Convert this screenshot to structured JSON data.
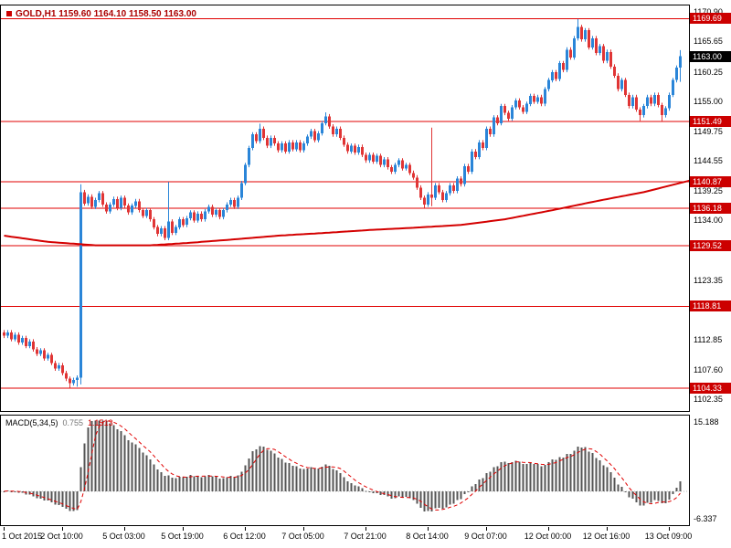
{
  "title": {
    "symbol_period": "GOLD,H1",
    "ohlc_text": "1159.60 1164.10 1158.50 1163.00"
  },
  "colors": {
    "up": "#2a85d8",
    "down": "#e03535",
    "ma": "#d40000",
    "hline": "#e00000",
    "tag_red": "#cc0000",
    "tag_black": "#000000",
    "macd_bar": "#555555",
    "macd_signal": "#e00000"
  },
  "price_axis": {
    "max": 1172.0,
    "min": 1100.3,
    "ticks": [
      {
        "label": "1170.90",
        "value": 1170.9
      },
      {
        "label": "1165.65",
        "value": 1165.65
      },
      {
        "label": "1160.25",
        "value": 1160.25
      },
      {
        "label": "1155.00",
        "value": 1155.0
      },
      {
        "label": "1149.75",
        "value": 1149.75
      },
      {
        "label": "1144.55",
        "value": 1144.55
      },
      {
        "label": "1139.25",
        "value": 1139.25
      },
      {
        "label": "1134.00",
        "value": 1134.0
      },
      {
        "label": "1123.35",
        "value": 1123.35
      },
      {
        "label": "1112.85",
        "value": 1112.85
      },
      {
        "label": "1107.60",
        "value": 1107.6
      },
      {
        "label": "1102.35",
        "value": 1102.35
      }
    ]
  },
  "current_price": {
    "label": "1163.00",
    "value": 1163.0
  },
  "time_axis": {
    "labels": [
      {
        "text": "1 Oct 2015",
        "bar": 0
      },
      {
        "text": "2 Oct 10:00",
        "bar": 16
      },
      {
        "text": "5 Oct 03:00",
        "bar": 33
      },
      {
        "text": "5 Oct 19:00",
        "bar": 49
      },
      {
        "text": "6 Oct 12:00",
        "bar": 66
      },
      {
        "text": "7 Oct 05:00",
        "bar": 82
      },
      {
        "text": "7 Oct 21:00",
        "bar": 99
      },
      {
        "text": "8 Oct 14:00",
        "bar": 116
      },
      {
        "text": "9 Oct 07:00",
        "bar": 132
      },
      {
        "text": "12 Oct 00:00",
        "bar": 149
      },
      {
        "text": "12 Oct 16:00",
        "bar": 165
      },
      {
        "text": "13 Oct 09:00",
        "bar": 182
      }
    ]
  },
  "chart_data": {
    "type": "candlestick",
    "symbol": "GOLD",
    "timeframe": "H1",
    "last_bar_ohlc": {
      "open": 1159.6,
      "high": 1164.1,
      "low": 1158.5,
      "close": 1163.0
    },
    "hlines": [
      {
        "label": "1169.69",
        "value": 1169.69
      },
      {
        "label": "1151.49",
        "value": 1151.49
      },
      {
        "label": "1140.87",
        "value": 1140.87
      },
      {
        "label": "1136.18",
        "value": 1136.18
      },
      {
        "label": "1129.52",
        "value": 1129.52
      },
      {
        "label": "1118.81",
        "value": 1118.81
      },
      {
        "label": "1104.33",
        "value": 1104.33
      }
    ],
    "closes": [
      1113.6,
      1114.2,
      1113.0,
      1113.8,
      1112.4,
      1113.2,
      1111.8,
      1112.6,
      1111.2,
      1110.4,
      1111.0,
      1109.6,
      1110.2,
      1108.8,
      1107.8,
      1108.4,
      1107.0,
      1106.0,
      1105.2,
      1105.8,
      1106.2,
      1139.0,
      1137.0,
      1138.2,
      1136.4,
      1137.6,
      1138.8,
      1136.8,
      1135.6,
      1136.8,
      1137.8,
      1136.2,
      1138.0,
      1136.6,
      1135.4,
      1136.6,
      1137.4,
      1135.8,
      1134.8,
      1135.8,
      1134.2,
      1132.8,
      1131.6,
      1132.6,
      1130.9,
      1133.8,
      1131.8,
      1132.8,
      1134.2,
      1133.2,
      1134.4,
      1135.4,
      1134.0,
      1135.2,
      1134.2,
      1135.6,
      1136.4,
      1135.0,
      1135.8,
      1134.6,
      1135.8,
      1136.8,
      1137.6,
      1136.4,
      1138.0,
      1140.6,
      1143.8,
      1146.8,
      1149.2,
      1148.0,
      1150.2,
      1148.6,
      1147.2,
      1148.6,
      1147.6,
      1146.4,
      1147.6,
      1146.2,
      1147.8,
      1146.6,
      1147.8,
      1146.4,
      1147.6,
      1148.8,
      1149.8,
      1148.2,
      1149.4,
      1151.2,
      1152.4,
      1150.6,
      1149.2,
      1150.2,
      1148.6,
      1147.4,
      1146.2,
      1147.2,
      1146.0,
      1147.0,
      1145.6,
      1144.6,
      1145.6,
      1144.4,
      1145.4,
      1143.8,
      1144.8,
      1143.4,
      1142.6,
      1143.8,
      1144.6,
      1143.2,
      1143.8,
      1142.4,
      1141.6,
      1139.8,
      1138.0,
      1136.8,
      1138.6,
      1138.0,
      1140.2,
      1139.0,
      1137.6,
      1138.8,
      1140.2,
      1139.2,
      1141.4,
      1140.4,
      1143.6,
      1142.6,
      1146.2,
      1145.2,
      1147.8,
      1146.8,
      1150.2,
      1149.2,
      1152.2,
      1151.2,
      1154.2,
      1153.0,
      1152.0,
      1154.0,
      1155.2,
      1154.0,
      1153.2,
      1154.6,
      1156.0,
      1155.0,
      1155.8,
      1154.6,
      1157.2,
      1158.8,
      1160.2,
      1159.0,
      1161.8,
      1160.6,
      1164.2,
      1162.8,
      1166.2,
      1168.2,
      1166.0,
      1167.6,
      1164.6,
      1166.2,
      1163.6,
      1164.8,
      1162.2,
      1163.8,
      1161.2,
      1159.6,
      1157.2,
      1158.8,
      1156.2,
      1154.2,
      1155.8,
      1153.6,
      1152.6,
      1154.2,
      1155.8,
      1154.6,
      1156.2,
      1154.4,
      1152.6,
      1153.8,
      1156.2,
      1158.8,
      1161.0,
      1163.0
    ],
    "wick_overrides": {
      "18": {
        "low": 1104.4
      },
      "20": {
        "low": 1104.6
      },
      "21": {
        "low": 1105.0,
        "high": 1140.4
      },
      "45": {
        "high": 1140.8
      },
      "70": {
        "high": 1151.1
      },
      "88": {
        "high": 1153.1
      },
      "115": {
        "low": 1136.2
      },
      "117": {
        "high": 1150.4,
        "low": 1136.5
      },
      "157": {
        "high": 1169.6
      },
      "174": {
        "low": 1151.6
      },
      "180": {
        "low": 1151.5
      },
      "185": {
        "high": 1164.1,
        "low": 1158.5
      }
    },
    "moving_average": {
      "color": "#d40000",
      "waypoints": [
        [
          0,
          1131.3
        ],
        [
          12,
          1130.2
        ],
        [
          25,
          1129.6
        ],
        [
          40,
          1129.6
        ],
        [
          50,
          1130.0
        ],
        [
          62,
          1130.6
        ],
        [
          75,
          1131.3
        ],
        [
          88,
          1131.8
        ],
        [
          100,
          1132.3
        ],
        [
          112,
          1132.7
        ],
        [
          125,
          1133.2
        ],
        [
          137,
          1134.2
        ],
        [
          150,
          1135.8
        ],
        [
          162,
          1137.4
        ],
        [
          175,
          1139.0
        ],
        [
          188,
          1141.1
        ]
      ]
    },
    "macd": {
      "label": "MACD(5,34,5)",
      "params": [
        5,
        34,
        5
      ],
      "value_main": "0.755",
      "value_signal": "1.1513",
      "axis_top_label": "15.188",
      "axis_bottom_label": "-6.337",
      "axis_top": 15.188,
      "axis_bottom": -6.337
    }
  }
}
